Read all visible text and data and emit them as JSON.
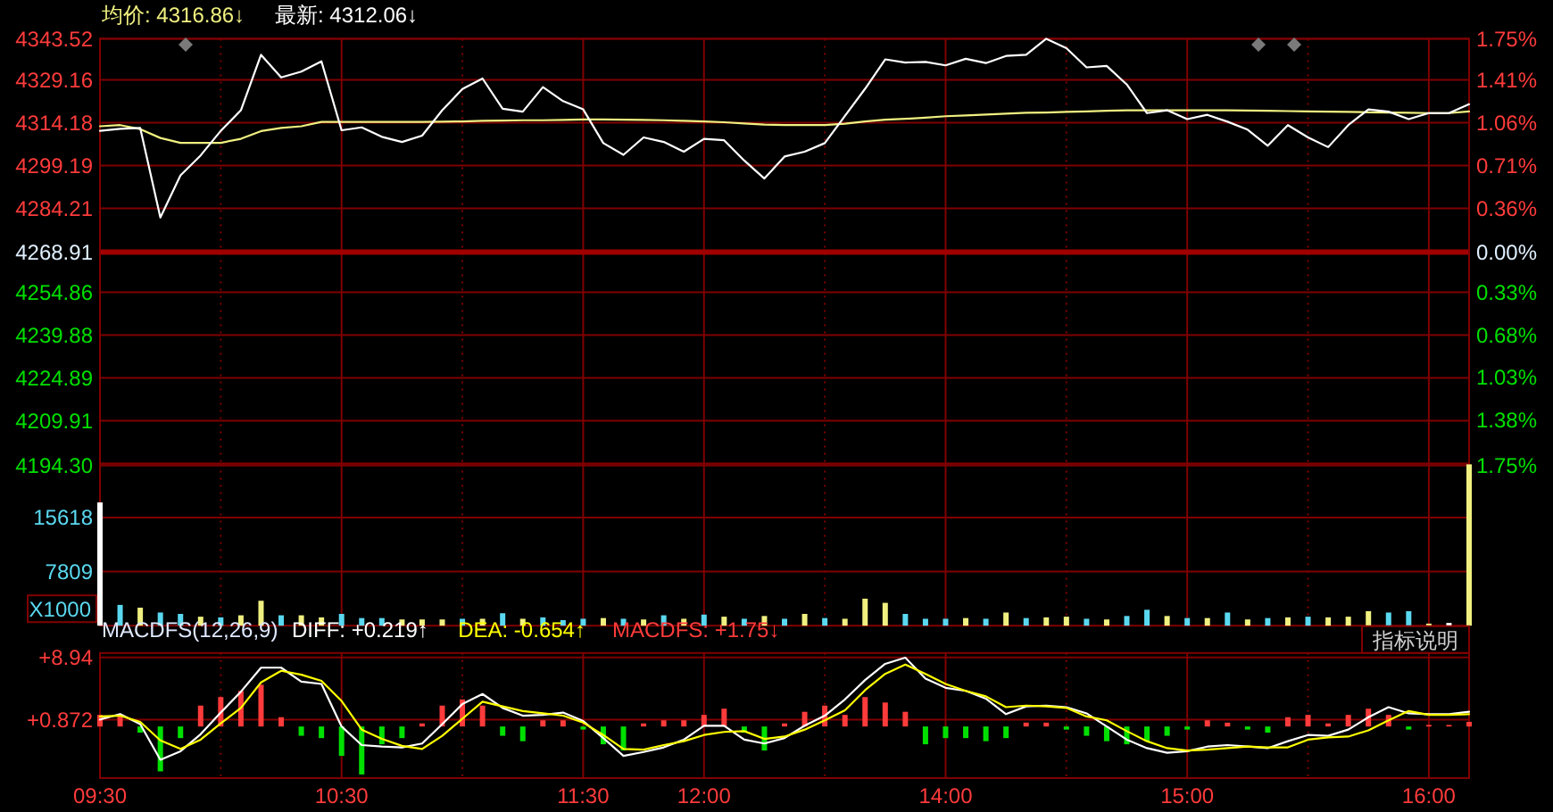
{
  "chart_data": [
    {
      "type": "line",
      "legend": "top left",
      "tick_labels": "y",
      "grid": true,
      "categories": [
        null,
        null,
        null,
        null,
        null,
        null,
        null,
        null,
        null,
        null,
        null,
        null,
        null,
        null,
        null,
        null,
        null,
        null,
        null,
        null,
        null,
        null,
        null,
        null,
        null,
        null,
        null,
        null,
        null,
        null,
        null,
        null,
        null,
        null,
        null,
        null,
        null,
        null,
        null,
        null,
        null,
        null,
        null,
        null,
        null,
        null,
        null,
        null,
        null,
        null,
        null,
        null,
        null,
        null,
        null,
        null,
        null,
        null,
        null,
        null,
        null,
        null,
        null,
        null,
        null,
        null,
        null,
        null,
        null
      ],
      "ylim": [
        4194.3,
        4343.52
      ],
      "yticks": [
        4343.52,
        4329.16,
        4314.18,
        4299.19,
        4284.21,
        4268.91,
        4254.86,
        4239.88,
        4224.89,
        4209.91,
        {
          "value": 4194.3,
          "label": "4194.30"
        }
      ],
      "y2lim": [
        -1.75,
        1.75
      ],
      "y2ticks": [
        {
          "value": 1.75,
          "label": "1.75%"
        },
        {
          "value": 1.41,
          "label": "1.41%"
        },
        {
          "value": 1.06,
          "label": "1.06%"
        },
        {
          "value": 0.71,
          "label": "0.71%"
        },
        {
          "value": 0.36,
          "label": "0.36%"
        },
        {
          "value": 0,
          "label": "0.00%"
        },
        {
          "value": -0.33,
          "label": "0.33%"
        },
        {
          "value": -0.68,
          "label": "0.68%"
        },
        {
          "value": -1.03,
          "label": "1.03%"
        },
        {
          "value": -1.38,
          "label": "1.38%"
        },
        {
          "value": -1.75,
          "label": "1.75%"
        }
      ],
      "ref_lines": [
        {
          "axis": "y",
          "value": 4268.91,
          "color": "#a00000"
        }
      ],
      "series": [
        {
          "name": "均价: 4316.86↓",
          "color": "#f0f080",
          "values": [
            4312.9,
            4313.3,
            4311.9,
            4308.8,
            4307.1,
            4307.1,
            4307.1,
            4308.5,
            4311.2,
            4312.3,
            4312.9,
            4314.4,
            4314.4,
            4314.4,
            4314.4,
            4314.4,
            4314.4,
            4314.5,
            4314.6,
            4314.8,
            4314.9,
            4315.0,
            4315.0,
            4315.1,
            4315.3,
            4315.3,
            4315.2,
            4315.1,
            4315.0,
            4314.8,
            4314.6,
            4314.3,
            4313.9,
            4313.5,
            4313.3,
            4313.3,
            4313.3,
            4313.8,
            4314.6,
            4315.2,
            4315.5,
            4315.9,
            4316.4,
            4316.7,
            4317.0,
            4317.3,
            4317.6,
            4317.7,
            4317.9,
            4318.1,
            4318.3,
            4318.5,
            4318.5,
            4318.5,
            4318.5,
            4318.5,
            4318.5,
            4318.4,
            4318.3,
            4318.2,
            4318.1,
            4318.0,
            4317.9,
            4317.8,
            4317.7,
            4317.6,
            4317.5,
            4317.5,
            4318.1
          ]
        },
        {
          "name": "最新: 4312.06↓",
          "color": "#ffffff",
          "values": [
            4311.3,
            4312.0,
            4312.3,
            4281.0,
            4295.7,
            4302.7,
            4311.3,
            4318.5,
            4337.9,
            4330.0,
            4332.0,
            4335.6,
            4311.5,
            4312.5,
            4309.2,
            4307.4,
            4309.6,
            4318.5,
            4325.9,
            4329.6,
            4319.0,
            4318.0,
            4326.6,
            4321.7,
            4318.8,
            4307.0,
            4302.9,
            4309.0,
            4307.4,
            4304.0,
            4308.5,
            4308.0,
            4300.9,
            4294.6,
            4302.3,
            4304.0,
            4307.0,
            4316.5,
            4326.0,
            4336.3,
            4335.2,
            4335.4,
            4334.2,
            4336.5,
            4335.0,
            4337.5,
            4337.9,
            4343.5,
            4340.2,
            4333.5,
            4334.0,
            4327.5,
            4317.5,
            4318.5,
            4315.4,
            4316.9,
            4314.5,
            4311.7,
            4306.1,
            4313.3,
            4309.0,
            4305.6,
            4313.3,
            4318.8,
            4318.0,
            4315.4,
            4317.5,
            4317.5,
            4320.6
          ]
        }
      ]
    },
    {
      "type": "bar",
      "tick_labels": "y",
      "grid": true,
      "ylabel": "X1000",
      "categories": [
        null,
        null,
        null,
        null,
        null,
        null,
        null,
        null,
        null,
        null,
        null,
        null,
        null,
        null,
        null,
        null,
        null,
        null,
        null,
        null,
        null,
        null,
        null,
        null,
        null,
        null,
        null,
        null,
        null,
        null,
        null,
        null,
        null,
        null,
        null,
        null,
        null,
        null,
        null,
        null,
        null,
        null,
        null,
        null,
        null,
        null,
        null,
        null,
        null,
        null,
        null,
        null,
        null,
        null,
        null,
        null,
        null,
        null,
        null,
        null,
        null,
        null,
        null,
        null,
        null,
        null,
        null,
        null,
        null
      ],
      "ylim": [
        0,
        23427
      ],
      "yticks": [
        7809,
        15618
      ],
      "series": [
        {
          "color": "#5ad8f0",
          "colors": [
            "#ffffff",
            "#5ad8f0",
            "#f0f080",
            "#5ad8f0",
            "#5ad8f0",
            "#f0f080",
            "#5ad8f0",
            "#f0f080",
            "#f0f080",
            "#5ad8f0",
            "#f0f080",
            "#f0f080",
            "#5ad8f0",
            "#5ad8f0",
            "#5ad8f0",
            "#f0f080",
            "#f0f080",
            "#f0f080",
            "#5ad8f0",
            "#f0f080",
            "#5ad8f0",
            "#f0f080",
            "#5ad8f0",
            "#5ad8f0",
            "#5ad8f0",
            "#f0f080",
            "#5ad8f0",
            "#f0f080",
            "#5ad8f0",
            "#f0f080",
            "#5ad8f0",
            "#f0f080",
            "#5ad8f0",
            "#f0f080",
            "#5ad8f0",
            "#f0f080",
            "#5ad8f0",
            "#f0f080",
            "#f0f080",
            "#f0f080",
            "#5ad8f0",
            "#5ad8f0",
            "#5ad8f0",
            "#f0f080",
            "#5ad8f0",
            "#f0f080",
            "#5ad8f0",
            "#f0f080",
            "#f0f080",
            "#5ad8f0",
            "#f0f080",
            "#5ad8f0",
            "#5ad8f0",
            "#f0f080",
            "#5ad8f0",
            "#f0f080",
            "#5ad8f0",
            "#f0f080",
            "#5ad8f0",
            "#f0f080",
            "#5ad8f0",
            "#f0f080",
            "#f0f080",
            "#f0f080",
            "#5ad8f0",
            "#5ad8f0",
            "#f0f080",
            "#ffffff",
            "#f0f080"
          ],
          "values": [
            17800,
            3000,
            2600,
            1900,
            1700,
            1300,
            1200,
            1500,
            3600,
            1500,
            1500,
            1200,
            1700,
            1100,
            1100,
            900,
            900,
            900,
            1000,
            1000,
            1800,
            1000,
            1200,
            800,
            1000,
            1100,
            1000,
            900,
            1500,
            1000,
            1600,
            1300,
            1000,
            1400,
            1000,
            1700,
            1100,
            1000,
            3900,
            3300,
            1700,
            1000,
            1000,
            1100,
            1000,
            1900,
            1100,
            1200,
            1300,
            1000,
            900,
            1400,
            2300,
            1400,
            1100,
            1100,
            1900,
            900,
            1100,
            1200,
            1300,
            1200,
            1300,
            2100,
            1900,
            2100,
            300,
            400,
            23300
          ]
        }
      ]
    },
    {
      "type": "bar",
      "title": "MACDFS(12,26,9)",
      "legend": "top left",
      "grid": true,
      "annotations": [
        "指标说明"
      ],
      "categories": [
        "09:30",
        null,
        null,
        null,
        null,
        null,
        null,
        null,
        null,
        null,
        null,
        null,
        "10:30",
        null,
        null,
        null,
        null,
        null,
        null,
        null,
        null,
        null,
        null,
        null,
        "11:30",
        null,
        null,
        null,
        null,
        null,
        "12:00",
        null,
        null,
        null,
        null,
        null,
        null,
        null,
        null,
        null,
        null,
        null,
        "14:00",
        null,
        null,
        null,
        null,
        null,
        null,
        null,
        null,
        null,
        null,
        null,
        "15:00",
        null,
        null,
        null,
        null,
        null,
        null,
        null,
        null,
        null,
        null,
        null,
        "16:00",
        null,
        null
      ],
      "ylim": [
        -6.67,
        9.5
      ],
      "yticks": [
        {
          "value": 8.94,
          "label": "+8.94"
        },
        {
          "value": 0.872,
          "label": "+0.872"
        }
      ],
      "series": [
        {
          "type": "line",
          "name": "DIFF: +0.219↑",
          "color": "#ffffff",
          "values": [
            0.9,
            1.6,
            0.3,
            -4.3,
            -3.2,
            -1.0,
            1.8,
            4.5,
            7.6,
            7.6,
            5.8,
            5.5,
            0.0,
            -2.4,
            -2.6,
            -2.7,
            -2.2,
            0.3,
            2.9,
            4.2,
            2.4,
            1.4,
            1.5,
            1.8,
            0.7,
            -1.5,
            -3.8,
            -3.3,
            -2.7,
            -1.7,
            0.1,
            0.1,
            -1.7,
            -2.2,
            -1.5,
            0.1,
            1.4,
            3.5,
            6.0,
            8.1,
            8.9,
            6.2,
            5.0,
            4.6,
            3.6,
            1.6,
            2.6,
            2.7,
            2.5,
            1.7,
            0.0,
            -1.7,
            -2.8,
            -3.4,
            -3.2,
            -2.6,
            -2.4,
            -2.6,
            -2.8,
            -1.9,
            -1.1,
            -1.2,
            -0.4,
            1.2,
            2.5,
            1.7,
            1.6,
            1.6,
            1.9
          ]
        },
        {
          "type": "line",
          "name": "DEA: -0.654↑",
          "color": "#ffff00",
          "values": [
            1.3,
            1.4,
            0.6,
            -1.8,
            -2.9,
            -1.7,
            0.4,
            2.4,
            5.7,
            7.2,
            6.7,
            5.9,
            3.3,
            -0.4,
            -1.6,
            -2.5,
            -2.9,
            -1.2,
            1.0,
            3.2,
            2.6,
            2.0,
            1.7,
            1.4,
            0.5,
            -1.1,
            -2.9,
            -3.0,
            -2.4,
            -1.9,
            -1.1,
            -0.7,
            -0.6,
            -1.6,
            -1.3,
            -0.4,
            0.8,
            2.1,
            4.7,
            6.8,
            8.0,
            6.8,
            5.5,
            4.6,
            3.9,
            2.5,
            2.7,
            2.6,
            2.4,
            1.3,
            0.8,
            -0.6,
            -1.9,
            -2.8,
            -3.1,
            -3.0,
            -2.8,
            -2.6,
            -2.7,
            -2.7,
            -1.7,
            -1.4,
            -1.3,
            -0.5,
            0.8,
            2.0,
            1.5,
            1.5,
            1.6
          ]
        },
        {
          "name": "MACDFS: +1.75↓",
          "color": "#ff3b3b",
          "colors": [
            "#ff3b3b",
            "#ff3b3b",
            "#00e000",
            "#00e000",
            "#00e000",
            "#ff3b3b",
            "#ff3b3b",
            "#ff3b3b",
            "#ff3b3b",
            "#ff3b3b",
            "#00e000",
            "#00e000",
            "#00e000",
            "#00e000",
            "#00e000",
            "#00e000",
            "#ff3b3b",
            "#ff3b3b",
            "#ff3b3b",
            "#ff3b3b",
            "#00e000",
            "#00e000",
            "#ff3b3b",
            "#ff3b3b",
            "#00e000",
            "#00e000",
            "#00e000",
            "#ff3b3b",
            "#ff3b3b",
            "#ff3b3b",
            "#ff3b3b",
            "#ff3b3b",
            "#00e000",
            "#00e000",
            "#ff3b3b",
            "#ff3b3b",
            "#ff3b3b",
            "#ff3b3b",
            "#ff3b3b",
            "#ff3b3b",
            "#ff3b3b",
            "#00e000",
            "#00e000",
            "#00e000",
            "#00e000",
            "#00e000",
            "#ff3b3b",
            "#ff3b3b",
            "#00e000",
            "#00e000",
            "#00e000",
            "#00e000",
            "#00e000",
            "#00e000",
            "#00e000",
            "#ff3b3b",
            "#ff3b3b",
            "#00e000",
            "#00e000",
            "#ff3b3b",
            "#ff3b3b",
            "#ff3b3b",
            "#ff3b3b",
            "#ff3b3b",
            "#ff3b3b",
            "#00e000",
            "#ff3b3b",
            "#ff3b3b",
            "#ff3b3b"
          ],
          "values": [
            1.5,
            1.5,
            -0.8,
            -5.8,
            -1.5,
            2.7,
            3.8,
            4.6,
            5.4,
            1.2,
            -1.2,
            -1.5,
            -3.8,
            -6.2,
            -2.3,
            -1.5,
            0.4,
            2.7,
            3.5,
            2.7,
            -1.2,
            -1.9,
            0.8,
            0.8,
            -0.4,
            -2.3,
            -3.1,
            0.4,
            0.8,
            0.8,
            1.5,
            2.3,
            -0.8,
            -3.1,
            0.4,
            1.9,
            2.7,
            1.5,
            3.8,
            3.1,
            1.9,
            -2.3,
            -1.5,
            -1.5,
            -1.9,
            -1.5,
            0.5,
            0.5,
            -0.4,
            -1.2,
            -1.9,
            -2.3,
            -1.9,
            -1.2,
            -0.4,
            0.8,
            0.5,
            -0.4,
            -0.8,
            1.2,
            1.5,
            0.4,
            1.5,
            2.3,
            1.5,
            -0.4,
            0.2,
            0.2,
            0.6
          ]
        }
      ]
    }
  ]
}
